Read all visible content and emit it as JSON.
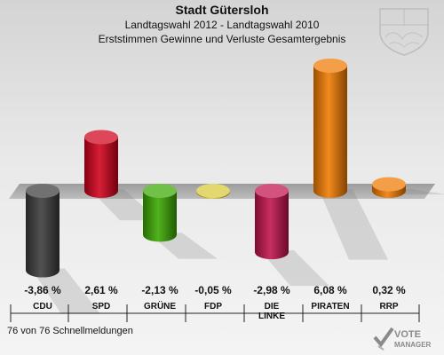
{
  "header": {
    "title": "Stadt Gütersloh",
    "subtitle1": "Landtagswahl 2012 - Landtagswahl 2010",
    "subtitle2": "Erststimmen Gewinne und Verluste Gesamtergebnis"
  },
  "chart_data": {
    "type": "bar",
    "title": "Stadt Gütersloh",
    "subtitle": "Landtagswahl 2012 - Landtagswahl 2010 / Erststimmen Gewinne und Verluste Gesamtergebnis",
    "categories": [
      "CDU",
      "SPD",
      "GRÜNE",
      "FDP",
      "DIE LINKE",
      "PIRATEN",
      "RRP"
    ],
    "category_lines": [
      [
        "CDU"
      ],
      [
        "SPD"
      ],
      [
        "GRÜNE"
      ],
      [
        "FDP"
      ],
      [
        "DIE",
        "LINKE"
      ],
      [
        "PIRATEN"
      ],
      [
        "RRP"
      ]
    ],
    "values": [
      -3.86,
      2.61,
      -2.13,
      -0.05,
      -2.98,
      6.08,
      0.32
    ],
    "value_labels": [
      "-3,86 %",
      "2,61 %",
      "-2,13 %",
      "-0,05 %",
      "-2,98 %",
      "6,08 %",
      "0,32 %"
    ],
    "colors": [
      "#3a3a3a",
      "#d0001a",
      "#3aa800",
      "#d8c838",
      "#c0124c",
      "#f07a00",
      "#f07a00"
    ],
    "unit": "%"
  },
  "footer": {
    "text": "76 von 76 Schnellmeldungen"
  },
  "branding": {
    "logo_text": "VOTE MANAGER",
    "logo_icon": "vote-manager-check-icon",
    "coat_of_arms": "nrw-coat-of-arms-icon"
  }
}
